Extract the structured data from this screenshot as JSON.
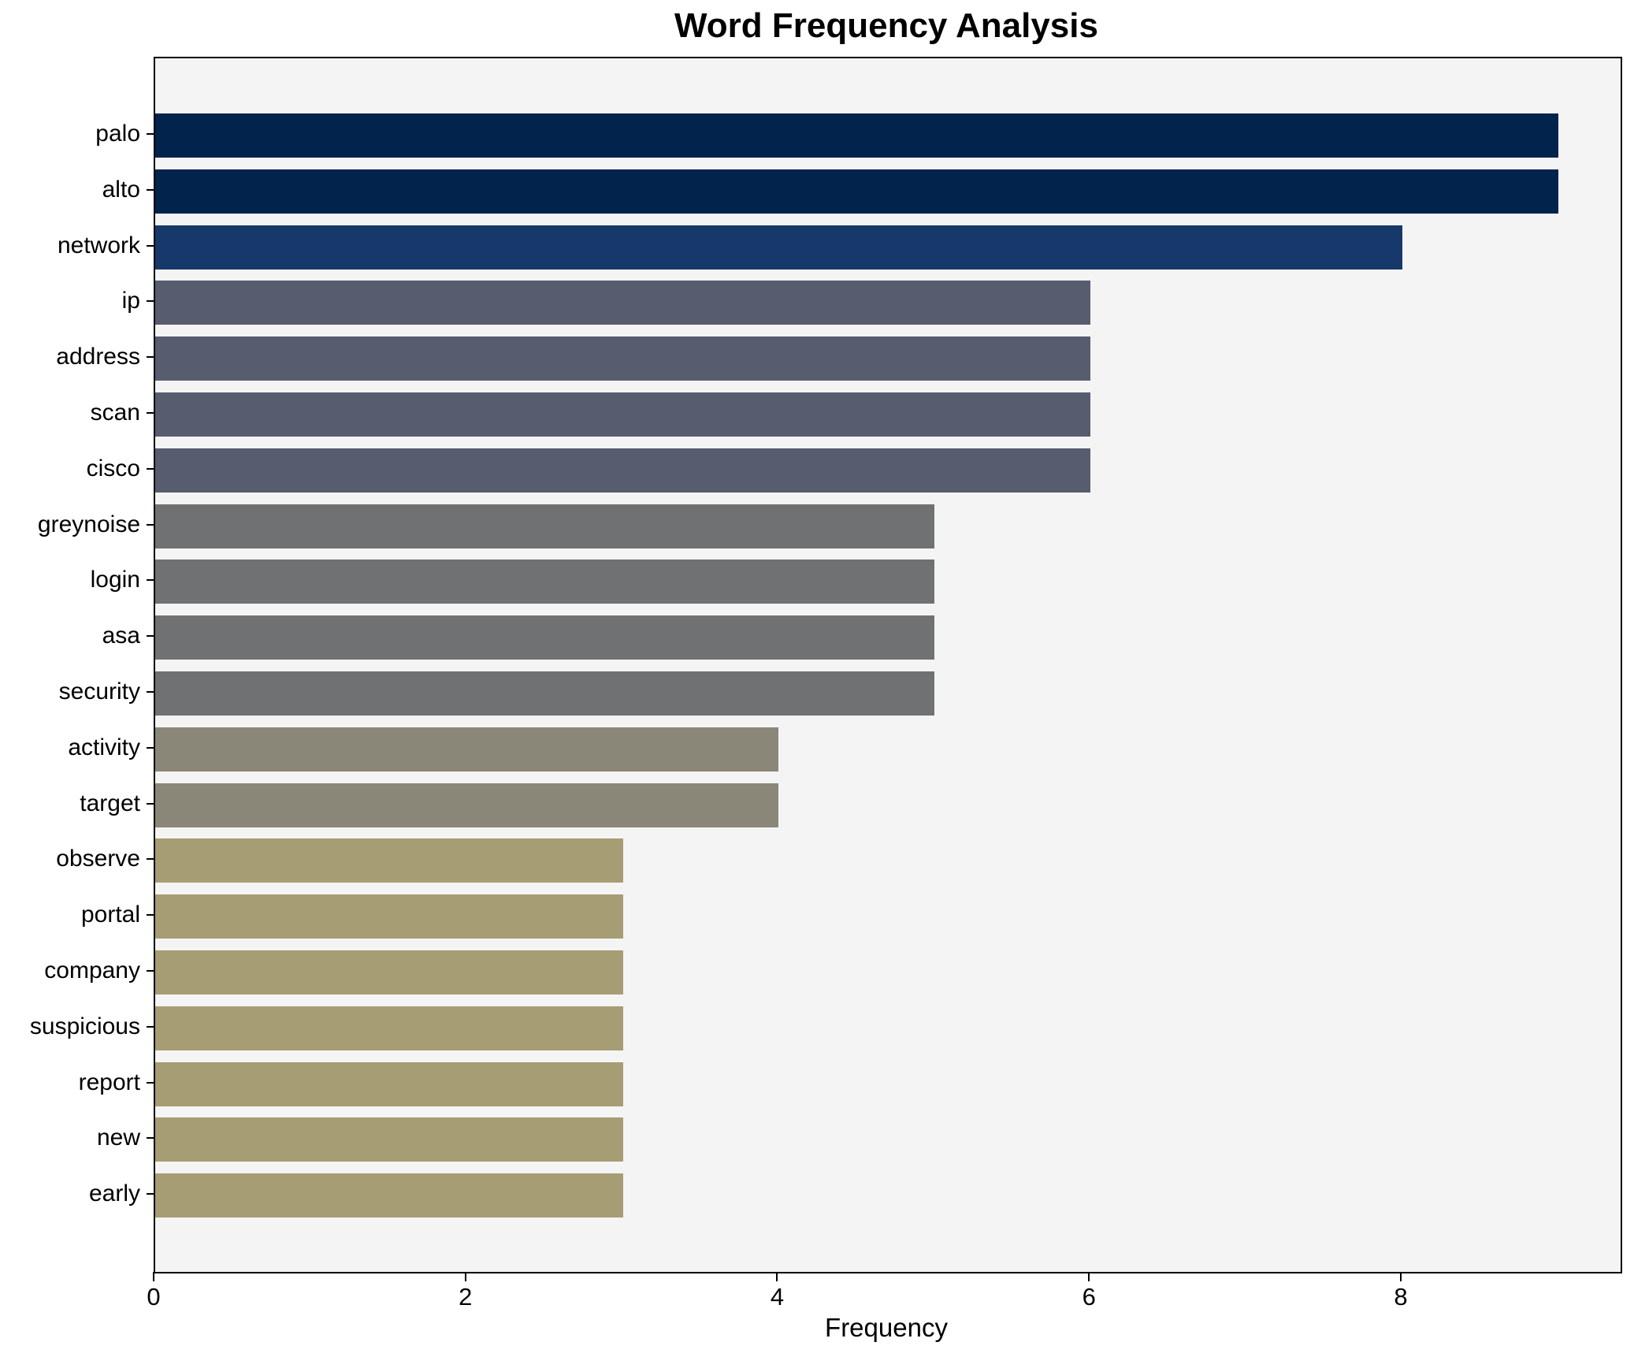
{
  "chart_data": {
    "type": "bar",
    "orientation": "horizontal",
    "title": "Word Frequency Analysis",
    "xlabel": "Frequency",
    "ylabel": "",
    "categories": [
      "palo",
      "alto",
      "network",
      "ip",
      "address",
      "scan",
      "cisco",
      "greynoise",
      "login",
      "asa",
      "security",
      "activity",
      "target",
      "observe",
      "portal",
      "company",
      "suspicious",
      "report",
      "new",
      "early"
    ],
    "values": [
      9,
      9,
      8,
      6,
      6,
      6,
      6,
      5,
      5,
      5,
      5,
      4,
      4,
      3,
      3,
      3,
      3,
      3,
      3,
      3
    ],
    "bar_colors": [
      "#02234c",
      "#02234c",
      "#17386b",
      "#575d6f",
      "#575d6f",
      "#575d6f",
      "#575d6f",
      "#707173",
      "#707173",
      "#707173",
      "#707173",
      "#8a8779",
      "#8a8779",
      "#a69d75",
      "#a69d75",
      "#a69d75",
      "#a69d75",
      "#a69d75",
      "#a69d75",
      "#a69d75"
    ],
    "x_ticks": [
      0,
      2,
      4,
      6,
      8
    ],
    "xlim": [
      0,
      9.4
    ],
    "grid": false,
    "legend": null,
    "colors": {
      "plot_background": "#f5f4f4",
      "figure_background": "#ffffff",
      "axis_border": "#000000",
      "text": "#000000"
    }
  }
}
